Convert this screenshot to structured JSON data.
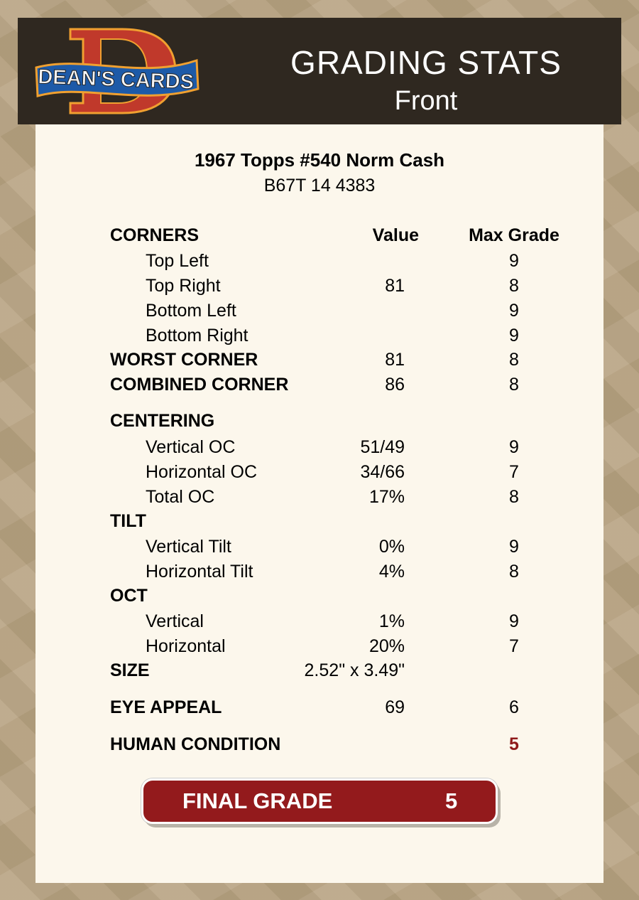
{
  "header": {
    "logo_text": "DEAN'S CARDS",
    "title": "GRADING STATS",
    "subtitle": "Front"
  },
  "card": {
    "name": "1967 Topps #540 Norm Cash",
    "code": "B67T 14 4383"
  },
  "columns": {
    "value": "Value",
    "max": "Max Grade"
  },
  "rows": [
    {
      "label": "CORNERS",
      "value": "",
      "max": "",
      "kind": "head"
    },
    {
      "label": "Top Left",
      "value": "",
      "max": "9",
      "kind": "sub"
    },
    {
      "label": "Top Right",
      "value": "81",
      "max": "8",
      "kind": "sub"
    },
    {
      "label": "Bottom Left",
      "value": "",
      "max": "9",
      "kind": "sub"
    },
    {
      "label": "Bottom Right",
      "value": "",
      "max": "9",
      "kind": "sub"
    },
    {
      "label": "WORST CORNER",
      "value": "81",
      "max": "8",
      "kind": "head"
    },
    {
      "label": "COMBINED CORNER",
      "value": "86",
      "max": "8",
      "kind": "head"
    },
    {
      "label": "CENTERING",
      "value": "",
      "max": "",
      "kind": "head"
    },
    {
      "label": "Vertical OC",
      "value": "51/49",
      "max": "9",
      "kind": "sub"
    },
    {
      "label": "Horizontal OC",
      "value": "34/66",
      "max": "7",
      "kind": "sub"
    },
    {
      "label": "Total OC",
      "value": "17%",
      "max": "8",
      "kind": "sub"
    },
    {
      "label": "TILT",
      "value": "",
      "max": "",
      "kind": "head"
    },
    {
      "label": "Vertical Tilt",
      "value": "0%",
      "max": "9",
      "kind": "sub"
    },
    {
      "label": "Horizontal Tilt",
      "value": "4%",
      "max": "8",
      "kind": "sub"
    },
    {
      "label": "OCT",
      "value": "",
      "max": "",
      "kind": "head"
    },
    {
      "label": "Vertical",
      "value": "1%",
      "max": "9",
      "kind": "sub"
    },
    {
      "label": "Horizontal",
      "value": "20%",
      "max": "7",
      "kind": "sub"
    },
    {
      "label": "SIZE",
      "value": "2.52\" x 3.49\"",
      "max": "",
      "kind": "head"
    },
    {
      "label": "EYE APPEAL",
      "value": "69",
      "max": "6",
      "kind": "head"
    },
    {
      "label": "HUMAN CONDITION",
      "value": "",
      "max": "5",
      "kind": "head",
      "highlight": true
    }
  ],
  "final": {
    "label": "FINAL GRADE",
    "value": "5"
  },
  "colors": {
    "header_bg": "#2f2820",
    "accent_red": "#931a1c",
    "panel_bg": "#fcf7ec"
  }
}
